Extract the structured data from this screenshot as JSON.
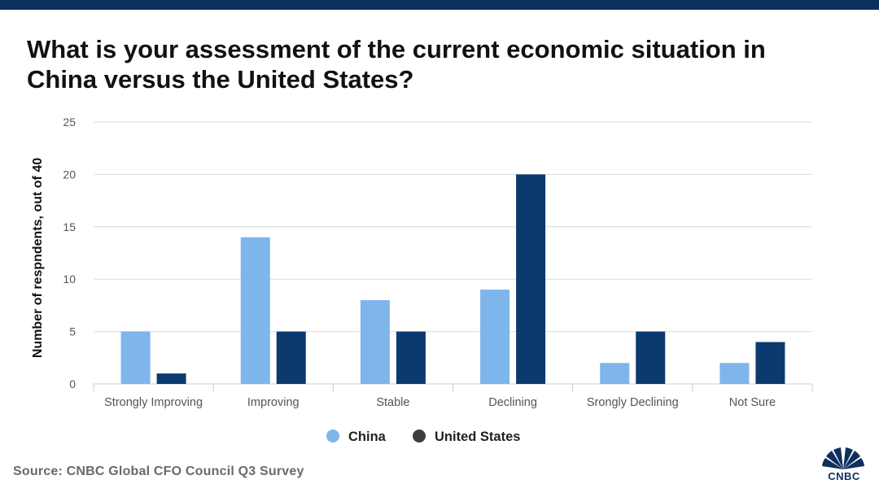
{
  "header": {
    "title_line1": "What is your assessment of the current economic situation in",
    "title_line2": "China versus the United States?"
  },
  "footer": {
    "source": "Source: CNBC Global CFO Council Q3 Survey",
    "logo_text": "CNBC"
  },
  "colors": {
    "top_bar": "#0d2f5e",
    "china": "#7eb5ea",
    "united_states": "#0b3a6e",
    "grid": "#dcdcdc",
    "axis_text": "#555555",
    "logo": "#0d2f5e"
  },
  "chart_data": {
    "type": "bar",
    "title": "What is your assessment of the current economic situation in China versus the United States?",
    "xlabel": "",
    "ylabel": "Number of respndents, out of 40",
    "ylim": [
      0,
      25
    ],
    "yticks": [
      0,
      5,
      10,
      15,
      20,
      25
    ],
    "grid": true,
    "legend_position": "bottom",
    "categories": [
      "Strongly Improving",
      "Improving",
      "Stable",
      "Declining",
      "Srongly Declining",
      "Not Sure"
    ],
    "series": [
      {
        "name": "China",
        "color": "#7eb5ea",
        "values": [
          5,
          14,
          8,
          9,
          2,
          2
        ]
      },
      {
        "name": "United States",
        "color": "#0b3a6e",
        "values": [
          1,
          5,
          5,
          20,
          5,
          4
        ]
      }
    ]
  }
}
